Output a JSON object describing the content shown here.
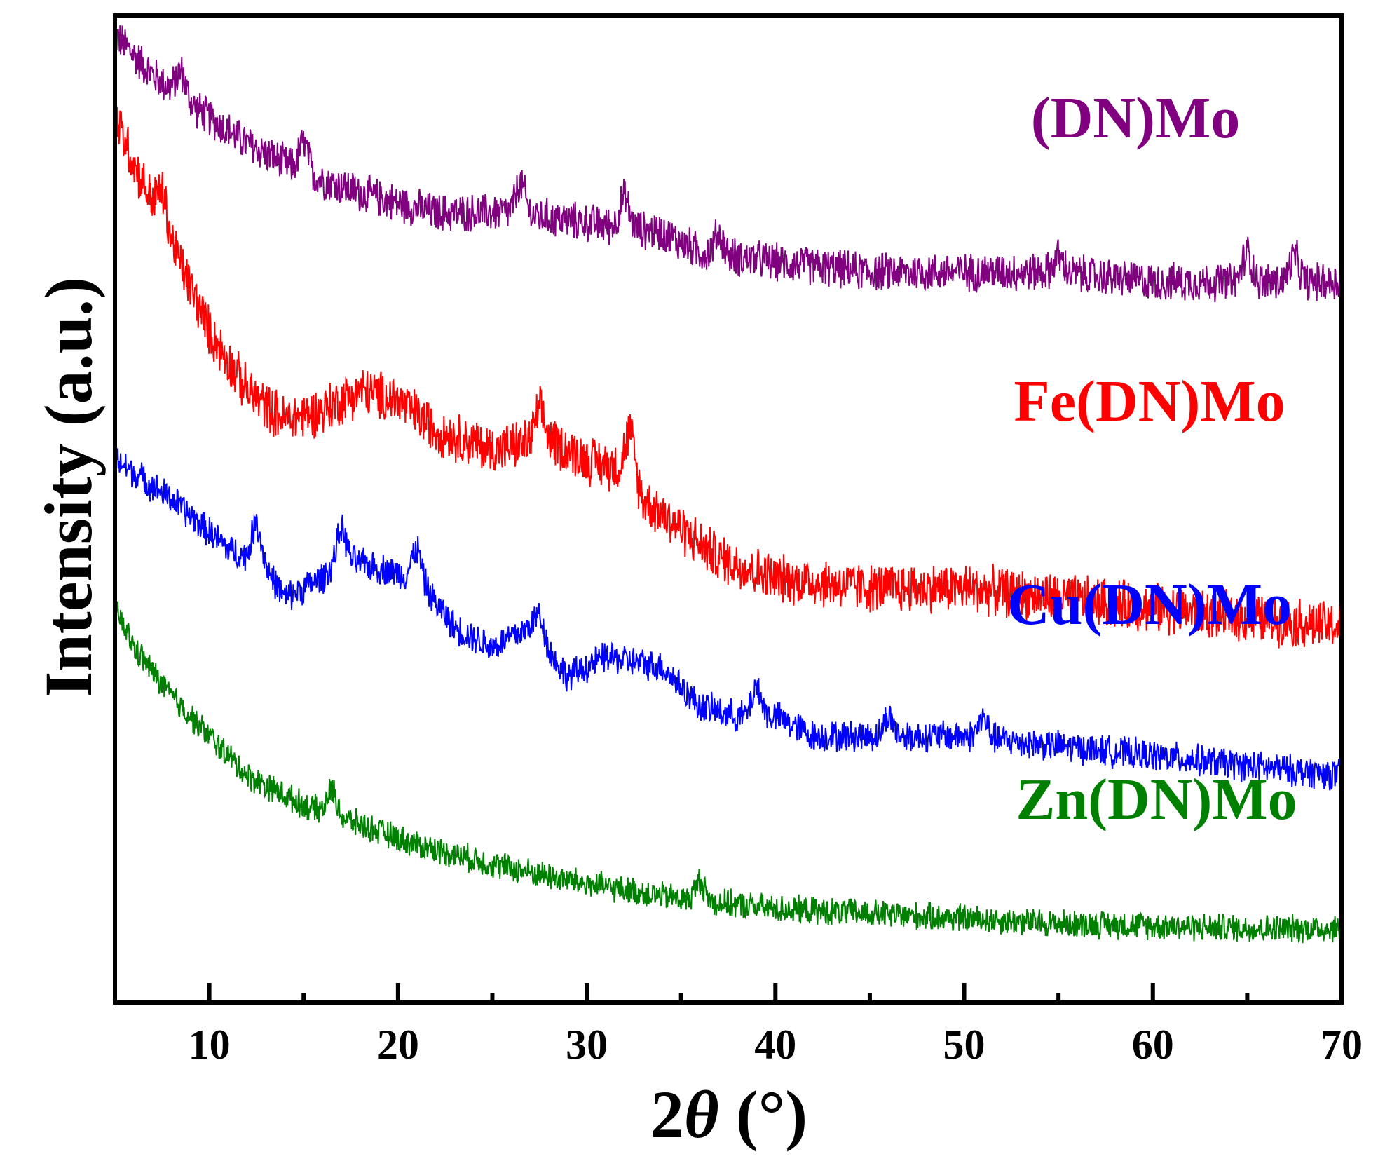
{
  "chart_data": {
    "type": "line",
    "title": "",
    "xlabel_prefix": "2",
    "xlabel_symbol": "θ",
    "xlabel_suffix": " (°)",
    "ylabel": "Intensity (a.u.)",
    "xlim": [
      5,
      70
    ],
    "ylim": [
      0,
      100
    ],
    "xticks": [
      10,
      20,
      30,
      40,
      50,
      60,
      70
    ],
    "minor_xticks": [
      15,
      25,
      35,
      45,
      55,
      65
    ],
    "yticks_shown": false,
    "grid": false,
    "series": [
      {
        "name": "(DN)Mo",
        "color": "#800080",
        "noise": 2.2,
        "points": [
          [
            5,
            98
          ],
          [
            7,
            94
          ],
          [
            9,
            91
          ],
          [
            12,
            87
          ],
          [
            15,
            84
          ],
          [
            18,
            82
          ],
          [
            22,
            80
          ],
          [
            26,
            80
          ],
          [
            30,
            79
          ],
          [
            34,
            78
          ],
          [
            36,
            76
          ],
          [
            40,
            75
          ],
          [
            45,
            74
          ],
          [
            50,
            74
          ],
          [
            55,
            74
          ],
          [
            60,
            73
          ],
          [
            65,
            73
          ],
          [
            70,
            73
          ]
        ],
        "peaks": [
          [
            8.5,
            2.5
          ],
          [
            15,
            3
          ],
          [
            26.5,
            3
          ],
          [
            32,
            3
          ],
          [
            37,
            2
          ],
          [
            55,
            1.5
          ],
          [
            65,
            3
          ],
          [
            67.5,
            2.5
          ]
        ]
      },
      {
        "name": "Fe(DN)Mo",
        "color": "#ff0000",
        "noise": 2.8,
        "points": [
          [
            5,
            90
          ],
          [
            6,
            85
          ],
          [
            8,
            77
          ],
          [
            10,
            68
          ],
          [
            12,
            62
          ],
          [
            14,
            59
          ],
          [
            16,
            60
          ],
          [
            18,
            62
          ],
          [
            20,
            61
          ],
          [
            22,
            58
          ],
          [
            25,
            56
          ],
          [
            28,
            57
          ],
          [
            30,
            55
          ],
          [
            32,
            54
          ],
          [
            33,
            51
          ],
          [
            35,
            48
          ],
          [
            37,
            45
          ],
          [
            40,
            43
          ],
          [
            45,
            42
          ],
          [
            50,
            42
          ],
          [
            55,
            41
          ],
          [
            60,
            40
          ],
          [
            65,
            39
          ],
          [
            70,
            38
          ]
        ],
        "peaks": [
          [
            7.5,
            3
          ],
          [
            27.5,
            3
          ],
          [
            32.3,
            4.5
          ]
        ]
      },
      {
        "name": "Cu(DN)Mo",
        "color": "#0000ff",
        "noise": 1.8,
        "points": [
          [
            5,
            55
          ],
          [
            8,
            51
          ],
          [
            11,
            46
          ],
          [
            13,
            44
          ],
          [
            14,
            41
          ],
          [
            16,
            43
          ],
          [
            17,
            45
          ],
          [
            19,
            44
          ],
          [
            21,
            43
          ],
          [
            23,
            38
          ],
          [
            25,
            36
          ],
          [
            27,
            38
          ],
          [
            29,
            33
          ],
          [
            31,
            35
          ],
          [
            34,
            34
          ],
          [
            36,
            30
          ],
          [
            38,
            29
          ],
          [
            40,
            29
          ],
          [
            42,
            27
          ],
          [
            45,
            27
          ],
          [
            50,
            27
          ],
          [
            55,
            26
          ],
          [
            60,
            25
          ],
          [
            65,
            24
          ],
          [
            70,
            23
          ]
        ],
        "peaks": [
          [
            12.5,
            4
          ],
          [
            17,
            3
          ],
          [
            21,
            3
          ],
          [
            27.5,
            2.5
          ],
          [
            39,
            3
          ],
          [
            46,
            2
          ],
          [
            51,
            2
          ]
        ]
      },
      {
        "name": "Zn(DN)Mo",
        "color": "#008000",
        "noise": 1.6,
        "points": [
          [
            5,
            40
          ],
          [
            6,
            36
          ],
          [
            8,
            31
          ],
          [
            10,
            27
          ],
          [
            12,
            23
          ],
          [
            15,
            20
          ],
          [
            18,
            18
          ],
          [
            21,
            16
          ],
          [
            25,
            14
          ],
          [
            30,
            12
          ],
          [
            35,
            10.5
          ],
          [
            40,
            9.5
          ],
          [
            45,
            9
          ],
          [
            50,
            8.5
          ],
          [
            55,
            8
          ],
          [
            60,
            7.8
          ],
          [
            65,
            7.5
          ],
          [
            70,
            7.5
          ]
        ],
        "peaks": [
          [
            16.5,
            2.5
          ],
          [
            36,
            2
          ]
        ]
      }
    ]
  }
}
